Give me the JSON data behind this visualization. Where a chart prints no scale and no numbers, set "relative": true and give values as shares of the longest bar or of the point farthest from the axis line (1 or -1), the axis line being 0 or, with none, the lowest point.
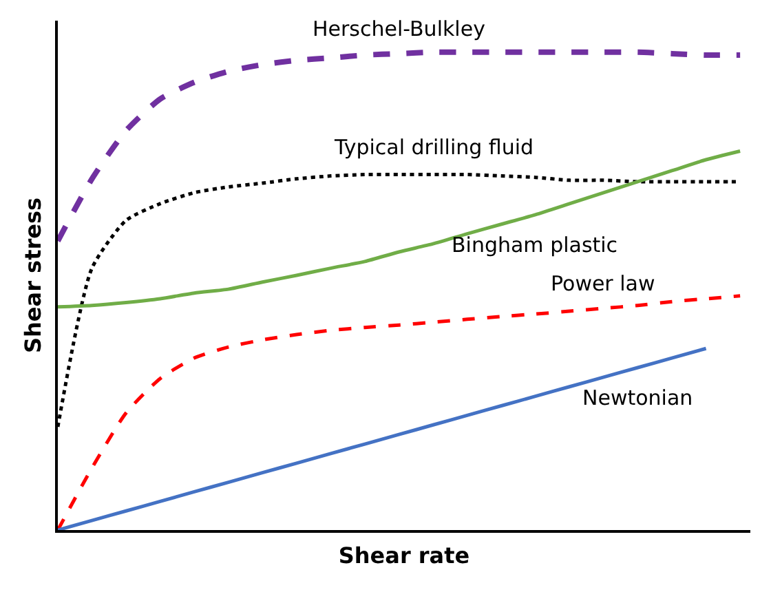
{
  "chart_data": {
    "type": "line",
    "relative": true,
    "xlabel": "Shear rate",
    "ylabel": "Shear stress",
    "legend": false,
    "marker": "none",
    "categories": [
      null,
      null,
      null,
      null,
      null,
      null,
      null,
      null,
      null,
      null,
      null,
      null,
      null,
      null,
      null,
      null,
      null,
      null,
      null,
      null,
      null
    ],
    "series": [
      {
        "name": "Herschel-Bulkley",
        "color": "#7030a0",
        "line_style": "dashed",
        "values": [
          0.605,
          0.735,
          0.836,
          0.902,
          0.937,
          0.96,
          0.974,
          0.983,
          0.988,
          0.994,
          0.997,
          1,
          1,
          1,
          1,
          1,
          1,
          1,
          0.997,
          0.994,
          0.994
        ]
      },
      {
        "name": "Typical drilling fluid",
        "color": "#000000",
        "line_style": "dotted",
        "values": [
          0.216,
          0.548,
          0.648,
          0.683,
          0.706,
          0.718,
          0.726,
          0.735,
          0.741,
          0.744,
          0.744,
          0.744,
          0.744,
          0.741,
          0.738,
          0.732,
          0.732,
          0.729,
          0.729,
          0.729,
          0.729
        ]
      },
      {
        "name": "Bingham plastic",
        "color": "#70ad47",
        "line_style": "solid",
        "values": [
          0.467,
          0.47,
          0.476,
          0.484,
          0.496,
          0.504,
          0.519,
          0.533,
          0.548,
          0.562,
          0.582,
          0.599,
          0.62,
          0.64,
          0.66,
          0.683,
          0.706,
          0.729,
          0.752,
          0.775,
          0.793
        ]
      },
      {
        "name": "Power law",
        "color": "#ff0000",
        "line_style": "dashed",
        "values": [
          0,
          0.13,
          0.245,
          0.317,
          0.36,
          0.383,
          0.398,
          0.409,
          0.418,
          0.424,
          0.429,
          0.435,
          0.441,
          0.447,
          0.452,
          0.458,
          0.464,
          0.47,
          0.478,
          0.484,
          0.49
        ]
      },
      {
        "name": "Newtonian",
        "color": "#4472c4",
        "line_style": "solid",
        "values": [
          0,
          0.02,
          0.04,
          0.06,
          0.08,
          0.1,
          0.12,
          0.14,
          0.16,
          0.18,
          0.2,
          0.22,
          0.24,
          0.26,
          0.28,
          0.3,
          0.32,
          0.34,
          0.36,
          0.38,
          null
        ]
      }
    ]
  }
}
